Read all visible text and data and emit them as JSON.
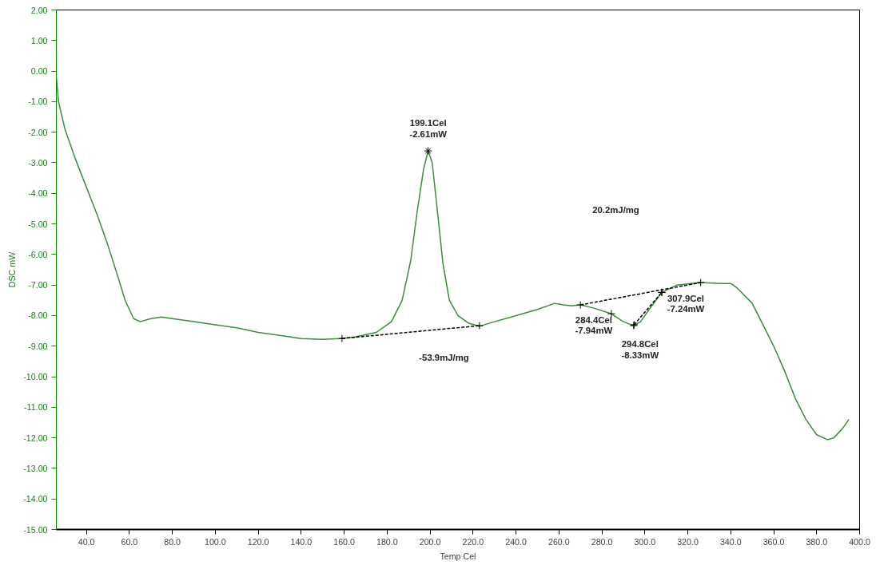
{
  "chart_data": {
    "type": "line",
    "xlabel": "Temp Cel",
    "ylabel": "DSC mW",
    "xlim": [
      26,
      400
    ],
    "ylim": [
      -15,
      2
    ],
    "xticks": [
      {
        "value": 40,
        "label": "40.0"
      },
      {
        "value": 60,
        "label": "60.0"
      },
      {
        "value": 80,
        "label": "80.0"
      },
      {
        "value": 100,
        "label": "100.0"
      },
      {
        "value": 120,
        "label": "120.0"
      },
      {
        "value": 140,
        "label": "140.0"
      },
      {
        "value": 160,
        "label": "160.0"
      },
      {
        "value": 180,
        "label": "180.0"
      },
      {
        "value": 200,
        "label": "200.0"
      },
      {
        "value": 220,
        "label": "220.0"
      },
      {
        "value": 240,
        "label": "240.0"
      },
      {
        "value": 260,
        "label": "260.0"
      },
      {
        "value": 280,
        "label": "280.0"
      },
      {
        "value": 300,
        "label": "300.0"
      },
      {
        "value": 320,
        "label": "320.0"
      },
      {
        "value": 340,
        "label": "340.0"
      },
      {
        "value": 360,
        "label": "360.0"
      },
      {
        "value": 380,
        "label": "380.0"
      },
      {
        "value": 400,
        "label": "400.0"
      }
    ],
    "yticks": [
      {
        "value": 2,
        "label": "2.00"
      },
      {
        "value": 1,
        "label": "1.00"
      },
      {
        "value": 0,
        "label": "0.00"
      },
      {
        "value": -1,
        "label": "-1.00"
      },
      {
        "value": -2,
        "label": "-2.00"
      },
      {
        "value": -3,
        "label": "-3.00"
      },
      {
        "value": -4,
        "label": "-4.00"
      },
      {
        "value": -5,
        "label": "-5.00"
      },
      {
        "value": -6,
        "label": "-6.00"
      },
      {
        "value": -7,
        "label": "-7.00"
      },
      {
        "value": -8,
        "label": "-8.00"
      },
      {
        "value": -9,
        "label": "-9.00"
      },
      {
        "value": -10,
        "label": "-10.00"
      },
      {
        "value": -11,
        "label": "-11.00"
      },
      {
        "value": -12,
        "label": "-12.00"
      },
      {
        "value": -13,
        "label": "-13.00"
      },
      {
        "value": -14,
        "label": "-14.00"
      },
      {
        "value": -15,
        "label": "-15.00"
      }
    ],
    "grid": false,
    "series": [
      {
        "color": "#3c8c3c",
        "line_style": "solid",
        "marker": "none",
        "x": [
          26,
          27,
          30,
          35,
          40,
          45,
          50,
          55,
          58,
          62,
          65,
          70,
          75,
          80,
          90,
          100,
          110,
          120,
          130,
          140,
          150,
          158,
          165,
          175,
          182,
          187,
          191,
          194,
          197,
          199.1,
          201,
          203,
          206,
          209,
          213,
          218,
          223,
          230,
          240,
          250,
          258,
          262,
          266,
          270,
          276,
          284.4,
          290,
          294.8,
          298,
          302,
          307.9,
          315,
          326,
          335,
          340,
          343,
          350,
          355,
          360,
          365,
          370,
          375,
          380,
          385,
          388,
          392,
          395
        ],
        "values": [
          -0.2,
          -1.0,
          -1.9,
          -2.9,
          -3.8,
          -4.7,
          -5.7,
          -6.8,
          -7.5,
          -8.1,
          -8.2,
          -8.1,
          -8.05,
          -8.1,
          -8.2,
          -8.3,
          -8.4,
          -8.55,
          -8.65,
          -8.75,
          -8.78,
          -8.75,
          -8.7,
          -8.55,
          -8.2,
          -7.5,
          -6.2,
          -4.6,
          -3.2,
          -2.61,
          -3.0,
          -4.3,
          -6.3,
          -7.5,
          -8.0,
          -8.25,
          -8.35,
          -8.2,
          -8.0,
          -7.8,
          -7.6,
          -7.65,
          -7.68,
          -7.65,
          -7.75,
          -7.94,
          -8.2,
          -8.33,
          -8.2,
          -7.8,
          -7.24,
          -7.0,
          -6.92,
          -6.95,
          -6.95,
          -7.1,
          -7.6,
          -8.3,
          -9.0,
          -9.8,
          -10.7,
          -11.4,
          -11.9,
          -12.06,
          -12.0,
          -11.7,
          -11.4
        ]
      },
      {
        "color": "#000000",
        "line_style": "dashed",
        "marker": "cross",
        "x": [
          159,
          223
        ],
        "values": [
          -8.75,
          -8.33
        ]
      },
      {
        "color": "#000000",
        "line_style": "dashed",
        "marker": "cross",
        "x": [
          270,
          326
        ],
        "values": [
          -7.65,
          -6.92
        ]
      },
      {
        "color": "#000000",
        "line_style": "dashed",
        "marker": "cross",
        "x": [
          295,
          307.9
        ],
        "values": [
          -8.3,
          -7.24
        ]
      }
    ],
    "annotations": [
      {
        "text": "199.1Cel\n-2.61mW",
        "x": 199.1,
        "y": -2.61
      },
      {
        "text": "284.4Cel\n-7.94mW",
        "x": 284.4,
        "y": -7.94
      },
      {
        "text": "294.8Cel\n-8.33mW",
        "x": 294.8,
        "y": -8.33
      },
      {
        "text": "307.9Cel\n-7.24mW",
        "x": 307.9,
        "y": -7.24
      },
      "-53.9mJ/mg",
      "20.2mJ/mg"
    ]
  }
}
